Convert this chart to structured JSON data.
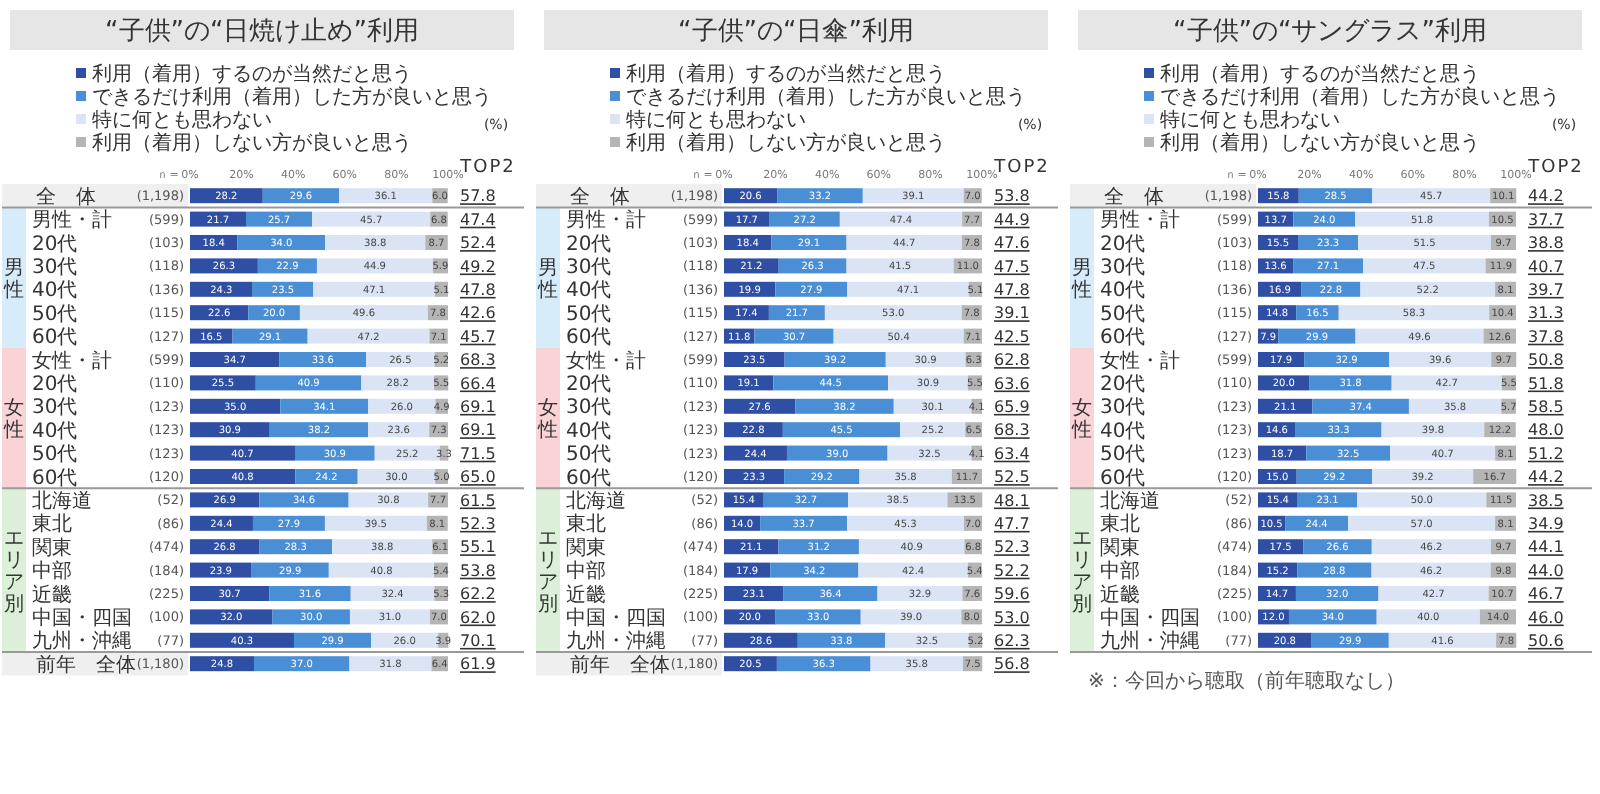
{
  "chart_data": [
    {
      "type": "bar",
      "orientation": "horizontal",
      "stacked": true,
      "legend": "top",
      "title": "“子供”の“日焼け止め”利用",
      "xlim": [
        0,
        100
      ],
      "xticks": [
        {
          "value": 0,
          "label": "0%"
        },
        {
          "value": 20,
          "label": "20%"
        },
        {
          "value": 40,
          "label": "40%"
        },
        {
          "value": 60,
          "label": "60%"
        },
        {
          "value": 80,
          "label": "80%"
        },
        {
          "value": 100,
          "label": "100%"
        }
      ],
      "categories": [
        "全　体",
        "男性・計",
        "20代",
        "30代",
        "40代",
        "50代",
        "60代",
        "女性・計",
        "20代",
        "30代",
        "40代",
        "50代",
        "60代",
        "北海道",
        "東北",
        "関東",
        "中部",
        "近畿",
        "中国・四国",
        "九州・沖縄",
        "前年　全体"
      ],
      "series": [
        {
          "name": "利用（着用）するのが当然だと思う",
          "color": "#2e4fa3",
          "values": [
            28.2,
            21.7,
            18.4,
            26.3,
            24.3,
            22.6,
            16.5,
            34.7,
            25.5,
            35.0,
            30.9,
            40.7,
            40.8,
            26.9,
            24.4,
            26.8,
            23.9,
            30.7,
            32.0,
            40.3,
            24.8
          ],
          "value_labels": [
            "28.2",
            "21.7",
            "18.4",
            "26.3",
            "24.3",
            "22.6",
            "16.5",
            "34.7",
            "25.5",
            "35.0",
            "30.9",
            "40.7",
            "40.8",
            "26.9",
            "24.4",
            "26.8",
            "23.9",
            "30.7",
            "32.0",
            "40.3",
            "24.8"
          ]
        },
        {
          "name": "できるだけ利用（着用）した方が良いと思う",
          "color": "#4a8fd6",
          "values": [
            29.6,
            25.7,
            34.0,
            22.9,
            23.5,
            20.0,
            29.1,
            33.6,
            40.9,
            34.1,
            38.2,
            30.9,
            24.2,
            34.6,
            27.9,
            28.3,
            29.9,
            31.6,
            30.0,
            29.9,
            37.0
          ],
          "value_labels": [
            "29.6",
            "25.7",
            "34.0",
            "22.9",
            "23.5",
            "20.0",
            "29.1",
            "33.6",
            "40.9",
            "34.1",
            "38.2",
            "30.9",
            "24.2",
            "34.6",
            "27.9",
            "28.3",
            "29.9",
            "31.6",
            "30.0",
            "29.9",
            "37.0"
          ]
        },
        {
          "name": "特に何とも思わない",
          "color": "#dbe4f4",
          "values": [
            36.1,
            45.7,
            38.8,
            44.9,
            47.1,
            49.6,
            47.2,
            26.5,
            28.2,
            26.0,
            23.6,
            25.2,
            30.0,
            30.8,
            39.5,
            38.8,
            40.8,
            32.4,
            31.0,
            26.0,
            31.8
          ],
          "value_labels": [
            "36.1",
            "45.7",
            "38.8",
            "44.9",
            "47.1",
            "49.6",
            "47.2",
            "26.5",
            "28.2",
            "26.0",
            "23.6",
            "25.2",
            "30.0",
            "30.8",
            "39.5",
            "38.8",
            "40.8",
            "32.4",
            "31.0",
            "26.0",
            "31.8"
          ]
        },
        {
          "name": "利用（着用）しない方が良いと思う",
          "color": "#b5b5b5",
          "values": [
            6.0,
            6.8,
            8.7,
            5.9,
            5.1,
            7.8,
            7.1,
            5.2,
            5.5,
            4.9,
            7.3,
            3.3,
            5.0,
            7.7,
            8.1,
            6.1,
            5.4,
            5.3,
            7.0,
            3.9,
            6.4
          ],
          "value_labels": [
            "6.0",
            "6.8",
            "8.7",
            "5.9",
            "5.1",
            "7.8",
            "7.1",
            "5.2",
            "5.5",
            "4.9",
            "7.3",
            "3.3",
            "5.0",
            "7.7",
            "8.1",
            "6.1",
            "5.4",
            "5.3",
            "7.0",
            "3.9",
            "6.4"
          ]
        }
      ],
      "annotations": [
        "(%)",
        "TOP2",
        "ｎ=",
        "男性",
        "女性",
        "エリア別",
        "(1,198)",
        "(599)",
        "(103)",
        "(118)",
        "(136)",
        "(115)",
        "(127)",
        "(599)",
        "(110)",
        "(123)",
        "(123)",
        "(123)",
        "(120)",
        "(52)",
        "(86)",
        "(474)",
        "(184)",
        "(225)",
        "(100)",
        "(77)",
        "(1,180)",
        "57.8",
        "47.4",
        "52.4",
        "49.2",
        "47.8",
        "42.6",
        "45.7",
        "68.3",
        "66.4",
        "69.1",
        "69.1",
        "71.5",
        "65.0",
        "61.5",
        "52.3",
        "55.1",
        "53.8",
        "62.2",
        "62.0",
        "70.1",
        "61.9"
      ]
    },
    {
      "type": "bar",
      "orientation": "horizontal",
      "stacked": true,
      "legend": "top",
      "title": "“子供”の“日傘”利用",
      "xlim": [
        0,
        100
      ],
      "xticks": [
        {
          "value": 0,
          "label": "0%"
        },
        {
          "value": 20,
          "label": "20%"
        },
        {
          "value": 40,
          "label": "40%"
        },
        {
          "value": 60,
          "label": "60%"
        },
        {
          "value": 80,
          "label": "80%"
        },
        {
          "value": 100,
          "label": "100%"
        }
      ],
      "categories": [
        "全　体",
        "男性・計",
        "20代",
        "30代",
        "40代",
        "50代",
        "60代",
        "女性・計",
        "20代",
        "30代",
        "40代",
        "50代",
        "60代",
        "北海道",
        "東北",
        "関東",
        "中部",
        "近畿",
        "中国・四国",
        "九州・沖縄",
        "前年　全体"
      ],
      "series": [
        {
          "name": "利用（着用）するのが当然だと思う",
          "color": "#2e4fa3",
          "values": [
            20.6,
            17.7,
            18.4,
            21.2,
            19.9,
            17.4,
            11.8,
            23.5,
            19.1,
            27.6,
            22.8,
            24.4,
            23.3,
            15.4,
            14.0,
            21.1,
            17.9,
            23.1,
            20.0,
            28.6,
            20.5
          ],
          "value_labels": [
            "20.6",
            "17.7",
            "18.4",
            "21.2",
            "19.9",
            "17.4",
            "11.8",
            "23.5",
            "19.1",
            "27.6",
            "22.8",
            "24.4",
            "23.3",
            "15.4",
            "14.0",
            "21.1",
            "17.9",
            "23.1",
            "20.0",
            "28.6",
            "20.5"
          ]
        },
        {
          "name": "できるだけ利用（着用）した方が良いと思う",
          "color": "#4a8fd6",
          "values": [
            33.2,
            27.2,
            29.1,
            26.3,
            27.9,
            21.7,
            30.7,
            39.2,
            44.5,
            38.2,
            45.5,
            39.0,
            29.2,
            32.7,
            33.7,
            31.2,
            34.2,
            36.4,
            33.0,
            33.8,
            36.3
          ],
          "value_labels": [
            "33.2",
            "27.2",
            "29.1",
            "26.3",
            "27.9",
            "21.7",
            "30.7",
            "39.2",
            "44.5",
            "38.2",
            "45.5",
            "39.0",
            "29.2",
            "32.7",
            "33.7",
            "31.2",
            "34.2",
            "36.4",
            "33.0",
            "33.8",
            "36.3"
          ]
        },
        {
          "name": "特に何とも思わない",
          "color": "#dbe4f4",
          "values": [
            39.1,
            47.4,
            44.7,
            41.5,
            47.1,
            53.0,
            50.4,
            30.9,
            30.9,
            30.1,
            25.2,
            32.5,
            35.8,
            38.5,
            45.3,
            40.9,
            42.4,
            32.9,
            39.0,
            32.5,
            35.8
          ],
          "value_labels": [
            "39.1",
            "47.4",
            "44.7",
            "41.5",
            "47.1",
            "53.0",
            "50.4",
            "30.9",
            "30.9",
            "30.1",
            "25.2",
            "32.5",
            "35.8",
            "38.5",
            "45.3",
            "40.9",
            "42.4",
            "32.9",
            "39.0",
            "32.5",
            "35.8"
          ]
        },
        {
          "name": "利用（着用）しない方が良いと思う",
          "color": "#b5b5b5",
          "values": [
            7.0,
            7.7,
            7.8,
            11.0,
            5.1,
            7.8,
            7.1,
            6.3,
            5.5,
            4.1,
            6.5,
            4.1,
            11.7,
            13.5,
            7.0,
            6.8,
            5.4,
            7.6,
            8.0,
            5.2,
            7.5
          ],
          "value_labels": [
            "7.0",
            "7.7",
            "7.8",
            "11.0",
            "5.1",
            "7.8",
            "7.1",
            "6.3",
            "5.5",
            "4.1",
            "6.5",
            "4.1",
            "11.7",
            "13.5",
            "7.0",
            "6.8",
            "5.4",
            "7.6",
            "8.0",
            "5.2",
            "7.5"
          ]
        }
      ],
      "annotations": [
        "(%)",
        "TOP2",
        "ｎ=",
        "男性",
        "女性",
        "エリア別",
        "(1,198)",
        "(599)",
        "(103)",
        "(118)",
        "(136)",
        "(115)",
        "(127)",
        "(599)",
        "(110)",
        "(123)",
        "(123)",
        "(123)",
        "(120)",
        "(52)",
        "(86)",
        "(474)",
        "(184)",
        "(225)",
        "(100)",
        "(77)",
        "(1,180)",
        "53.8",
        "44.9",
        "47.6",
        "47.5",
        "47.8",
        "39.1",
        "42.5",
        "62.8",
        "63.6",
        "65.9",
        "68.3",
        "63.4",
        "52.5",
        "48.1",
        "47.7",
        "52.3",
        "52.2",
        "59.6",
        "53.0",
        "62.3",
        "56.8"
      ]
    },
    {
      "type": "bar",
      "orientation": "horizontal",
      "stacked": true,
      "legend": "top",
      "title": "“子供”の“サングラス”利用",
      "xlim": [
        0,
        100
      ],
      "xticks": [
        {
          "value": 0,
          "label": "0%"
        },
        {
          "value": 20,
          "label": "20%"
        },
        {
          "value": 40,
          "label": "40%"
        },
        {
          "value": 60,
          "label": "60%"
        },
        {
          "value": 80,
          "label": "80%"
        },
        {
          "value": 100,
          "label": "100%"
        }
      ],
      "categories": [
        "全　体",
        "男性・計",
        "20代",
        "30代",
        "40代",
        "50代",
        "60代",
        "女性・計",
        "20代",
        "30代",
        "40代",
        "50代",
        "60代",
        "北海道",
        "東北",
        "関東",
        "中部",
        "近畿",
        "中国・四国",
        "九州・沖縄"
      ],
      "series": [
        {
          "name": "利用（着用）するのが当然だと思う",
          "color": "#2e4fa3",
          "values": [
            15.8,
            13.7,
            15.5,
            13.6,
            16.9,
            14.8,
            7.9,
            17.9,
            20.0,
            21.1,
            14.6,
            18.7,
            15.0,
            15.4,
            10.5,
            17.5,
            15.2,
            14.7,
            12.0,
            20.8
          ],
          "value_labels": [
            "15.8",
            "13.7",
            "15.5",
            "13.6",
            "16.9",
            "14.8",
            "7.9",
            "17.9",
            "20.0",
            "21.1",
            "14.6",
            "18.7",
            "15.0",
            "15.4",
            "10.5",
            "17.5",
            "15.2",
            "14.7",
            "12.0",
            "20.8"
          ]
        },
        {
          "name": "できるだけ利用（着用）した方が良いと思う",
          "color": "#4a8fd6",
          "values": [
            28.5,
            24.0,
            23.3,
            27.1,
            22.8,
            16.5,
            29.9,
            32.9,
            31.8,
            37.4,
            33.3,
            32.5,
            29.2,
            23.1,
            24.4,
            26.6,
            28.8,
            32.0,
            34.0,
            29.9
          ],
          "value_labels": [
            "28.5",
            "24.0",
            "23.3",
            "27.1",
            "22.8",
            "16.5",
            "29.9",
            "32.9",
            "31.8",
            "37.4",
            "33.3",
            "32.5",
            "29.2",
            "23.1",
            "24.4",
            "26.6",
            "28.8",
            "32.0",
            "34.0",
            "29.9"
          ]
        },
        {
          "name": "特に何とも思わない",
          "color": "#dbe4f4",
          "values": [
            45.7,
            51.8,
            51.5,
            47.5,
            52.2,
            58.3,
            49.6,
            39.6,
            42.7,
            35.8,
            39.8,
            40.7,
            39.2,
            50.0,
            57.0,
            46.2,
            46.2,
            42.7,
            40.0,
            41.6
          ],
          "value_labels": [
            "45.7",
            "51.8",
            "51.5",
            "47.5",
            "52.2",
            "58.3",
            "49.6",
            "39.6",
            "42.7",
            "35.8",
            "39.8",
            "40.7",
            "39.2",
            "50.0",
            "57.0",
            "46.2",
            "46.2",
            "42.7",
            "40.0",
            "41.6"
          ]
        },
        {
          "name": "利用（着用）しない方が良いと思う",
          "color": "#b5b5b5",
          "values": [
            10.1,
            10.5,
            9.7,
            11.9,
            8.1,
            10.4,
            12.6,
            9.7,
            5.5,
            5.7,
            12.2,
            8.1,
            16.7,
            11.5,
            8.1,
            9.7,
            9.8,
            10.7,
            14.0,
            7.8
          ],
          "value_labels": [
            "10.1",
            "10.5",
            "9.7",
            "11.9",
            "8.1",
            "10.4",
            "12.6",
            "9.7",
            "5.5",
            "5.7",
            "12.2",
            "8.1",
            "16.7",
            "11.5",
            "8.1",
            "9.7",
            "9.8",
            "10.7",
            "14.0",
            "7.8"
          ]
        }
      ],
      "annotations": [
        "(%)",
        "TOP2",
        "ｎ=",
        "男性",
        "女性",
        "エリア別",
        "(1,198)",
        "(599)",
        "(103)",
        "(118)",
        "(136)",
        "(115)",
        "(127)",
        "(599)",
        "(110)",
        "(123)",
        "(123)",
        "(123)",
        "(120)",
        "(52)",
        "(86)",
        "(474)",
        "(184)",
        "(225)",
        "(100)",
        "(77)",
        "44.2",
        "37.7",
        "38.8",
        "40.7",
        "39.7",
        "31.3",
        "37.8",
        "50.8",
        "51.8",
        "58.5",
        "48.0",
        "51.2",
        "44.2",
        "38.5",
        "34.9",
        "44.1",
        "44.0",
        "46.7",
        "46.0",
        "50.6",
        "※：今回から聴取（前年聴取なし）"
      ]
    }
  ]
}
